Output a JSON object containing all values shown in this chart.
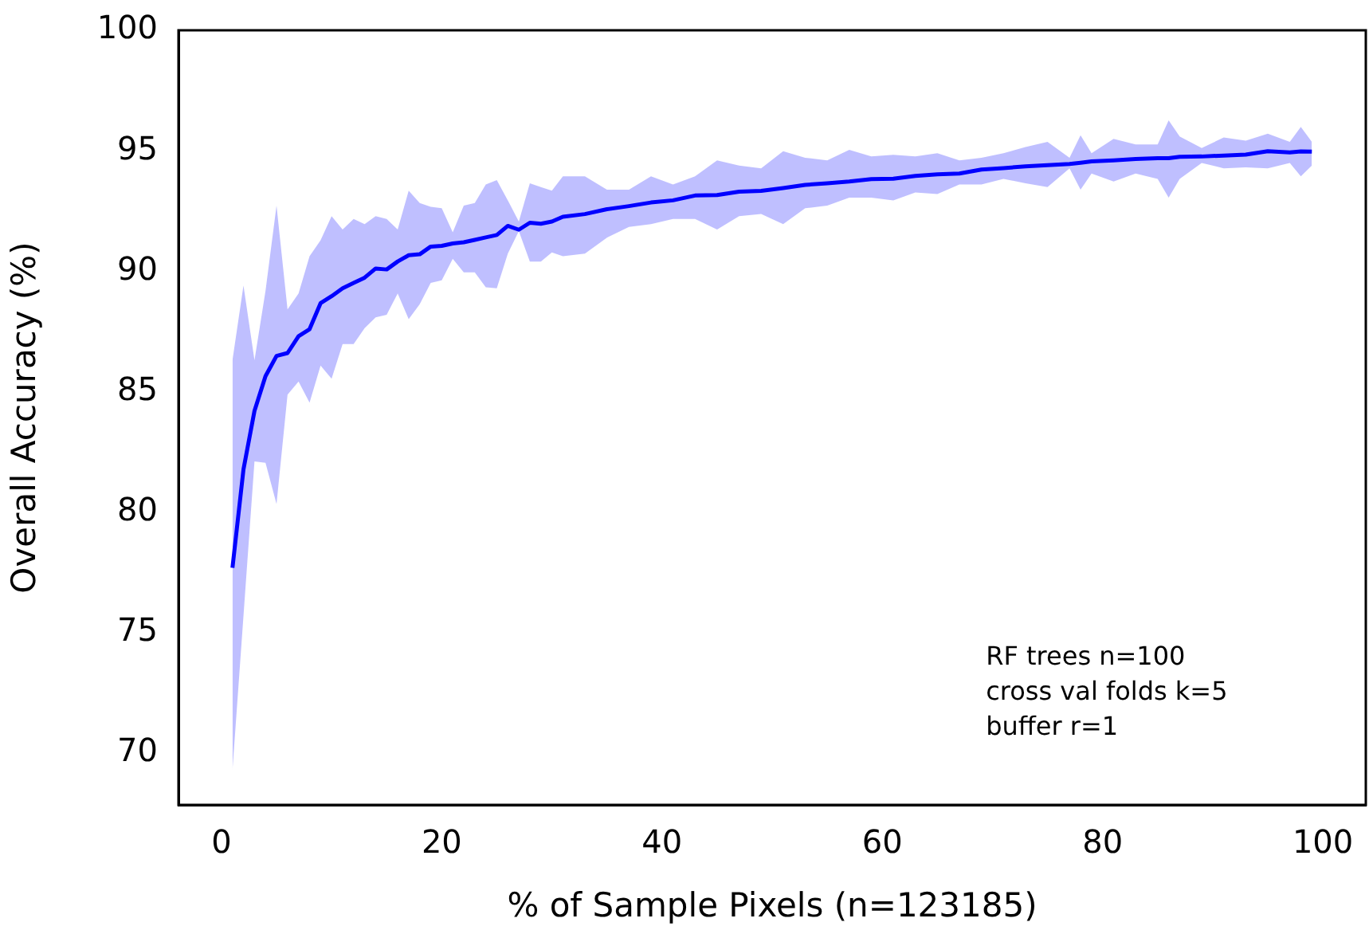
{
  "chart_data": {
    "type": "line",
    "xlabel": "% of Sample Pixels (n=123185)",
    "ylabel": "Overall Accuracy (%)",
    "annotations": [
      "RF trees n=100",
      "cross val folds k=5",
      "buffer r=1"
    ],
    "xlim": [
      -3.9,
      103.9
    ],
    "xticks": [
      0,
      20,
      40,
      60,
      80,
      100
    ],
    "ylim": [
      67.84,
      100
    ],
    "yticks": [
      70,
      75,
      80,
      85,
      90,
      95,
      100
    ],
    "grid": false,
    "legend": false,
    "marker": "none",
    "line_style": "solid",
    "series": [
      {
        "color": "#0000ff",
        "x": [
          1,
          2,
          3,
          4,
          5,
          6,
          7,
          8,
          9,
          10,
          11,
          12,
          13,
          14,
          15,
          16,
          17,
          18,
          19,
          20,
          21,
          22,
          23,
          24,
          25,
          26,
          27,
          28,
          29,
          30,
          31,
          33,
          35,
          37,
          39,
          41,
          43,
          45,
          47,
          49,
          51,
          53,
          55,
          57,
          59,
          61,
          63,
          65,
          67,
          69,
          71,
          73,
          75,
          77,
          78,
          79,
          81,
          83,
          85,
          86,
          87,
          89,
          91,
          93,
          95,
          97,
          98,
          99
        ],
        "values": [
          77.68,
          81.77,
          84.2,
          85.64,
          86.48,
          86.6,
          87.3,
          87.59,
          88.67,
          88.96,
          89.29,
          89.51,
          89.73,
          90.11,
          90.07,
          90.4,
          90.66,
          90.7,
          91.02,
          91.05,
          91.15,
          91.2,
          91.3,
          91.4,
          91.5,
          91.88,
          91.72,
          92.01,
          91.97,
          92.06,
          92.26,
          92.37,
          92.57,
          92.7,
          92.85,
          92.94,
          93.14,
          93.16,
          93.3,
          93.33,
          93.45,
          93.58,
          93.65,
          93.72,
          93.82,
          93.84,
          93.95,
          94.02,
          94.05,
          94.22,
          94.28,
          94.35,
          94.4,
          94.45,
          94.5,
          94.56,
          94.6,
          94.66,
          94.69,
          94.69,
          94.75,
          94.76,
          94.8,
          94.84,
          94.98,
          94.93,
          94.97,
          94.96
        ],
        "upper": [
          86.3,
          89.4,
          86.3,
          89.18,
          92.72,
          88.41,
          89.07,
          90.62,
          91.28,
          92.28,
          91.73,
          92.17,
          91.95,
          92.28,
          92.17,
          91.73,
          93.34,
          92.83,
          92.67,
          92.61,
          91.61,
          92.72,
          92.83,
          93.6,
          93.78,
          92.94,
          92.06,
          93.65,
          93.49,
          93.34,
          93.94,
          93.94,
          93.38,
          93.38,
          93.94,
          93.6,
          93.94,
          94.6,
          94.38,
          94.27,
          94.98,
          94.71,
          94.6,
          95.04,
          94.76,
          94.83,
          94.76,
          94.9,
          94.6,
          94.71,
          94.9,
          95.15,
          95.37,
          94.71,
          95.64,
          94.9,
          95.49,
          95.26,
          95.26,
          96.26,
          95.59,
          95.11,
          95.55,
          95.42,
          95.71,
          95.37,
          95.99,
          95.37
        ],
        "lower": [
          69.28,
          75.69,
          82.1,
          82.04,
          80.33,
          84.87,
          85.42,
          84.54,
          86.08,
          85.53,
          86.97,
          86.97,
          87.63,
          88.08,
          88.19,
          89.07,
          88.01,
          88.63,
          89.51,
          89.62,
          90.51,
          89.95,
          89.95,
          89.33,
          89.29,
          90.73,
          91.66,
          90.4,
          90.4,
          90.78,
          90.62,
          90.73,
          91.39,
          91.84,
          91.95,
          92.17,
          92.17,
          91.73,
          92.28,
          92.37,
          91.95,
          92.61,
          92.72,
          93.05,
          93.05,
          92.94,
          93.27,
          93.2,
          93.6,
          93.6,
          93.83,
          93.65,
          93.49,
          94.27,
          93.38,
          94.05,
          93.72,
          94.05,
          93.83,
          93.05,
          93.83,
          94.49,
          94.27,
          94.31,
          94.27,
          94.49,
          93.94,
          94.38
        ]
      }
    ]
  }
}
